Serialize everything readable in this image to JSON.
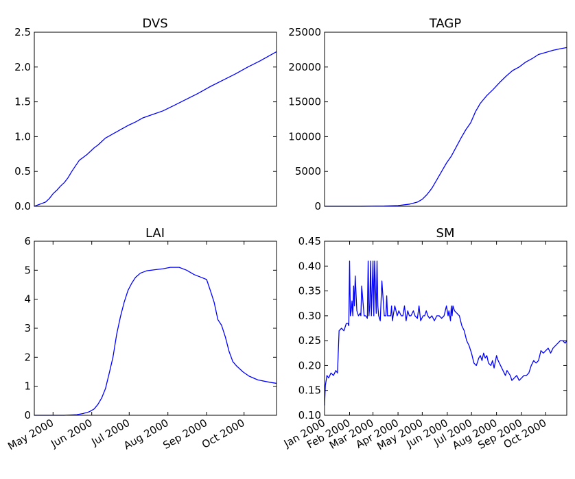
{
  "colors": {
    "line": "#0000ff",
    "axes": "#000000",
    "background": "#ffffff"
  },
  "chart_data": [
    {
      "type": "line",
      "title": "DVS",
      "xlabel": "",
      "ylabel": "",
      "xlim": [
        "2000-04-16",
        "2000-10-27"
      ],
      "ylim": [
        0,
        2.5
      ],
      "yticks": [
        "0.0",
        "0.5",
        "1.0",
        "1.5",
        "2.0",
        "2.5"
      ],
      "xticks": [],
      "grid": false,
      "series": [
        {
          "x": [
            "2000-04-16",
            "2000-04-22",
            "2000-04-25",
            "2000-04-28",
            "2000-05-01",
            "2000-05-04",
            "2000-05-07",
            "2000-05-10",
            "2000-05-13",
            "2000-05-16",
            "2000-05-19",
            "2000-05-22",
            "2000-05-25",
            "2000-05-28",
            "2000-05-31",
            "2000-06-03",
            "2000-06-06",
            "2000-06-09",
            "2000-06-12",
            "2000-06-15",
            "2000-06-18",
            "2000-06-21",
            "2000-06-24",
            "2000-06-27",
            "2000-06-30",
            "2000-07-06",
            "2000-07-12",
            "2000-07-20",
            "2000-07-28",
            "2000-08-05",
            "2000-08-15",
            "2000-08-25",
            "2000-09-04",
            "2000-09-14",
            "2000-09-24",
            "2000-10-04",
            "2000-10-14",
            "2000-10-27"
          ],
          "y": [
            0.0,
            0.04,
            0.06,
            0.11,
            0.18,
            0.23,
            0.29,
            0.34,
            0.41,
            0.5,
            0.58,
            0.66,
            0.7,
            0.74,
            0.79,
            0.84,
            0.88,
            0.93,
            0.98,
            1.01,
            1.04,
            1.07,
            1.1,
            1.13,
            1.16,
            1.21,
            1.27,
            1.32,
            1.37,
            1.44,
            1.53,
            1.62,
            1.72,
            1.81,
            1.9,
            2.0,
            2.09,
            2.22
          ]
        }
      ]
    },
    {
      "type": "line",
      "title": "TAGP",
      "xlabel": "",
      "ylabel": "",
      "xlim": [
        "2000-01-01",
        "2000-10-27"
      ],
      "ylim": [
        0,
        25000
      ],
      "yticks": [
        "0",
        "5000",
        "10000",
        "15000",
        "20000",
        "25000"
      ],
      "xticks": [],
      "grid": false,
      "series": [
        {
          "x": [
            "2000-01-01",
            "2000-02-15",
            "2000-03-15",
            "2000-04-01",
            "2000-04-15",
            "2000-04-25",
            "2000-05-01",
            "2000-05-07",
            "2000-05-13",
            "2000-05-19",
            "2000-05-25",
            "2000-05-31",
            "2000-06-06",
            "2000-06-12",
            "2000-06-18",
            "2000-06-24",
            "2000-06-30",
            "2000-07-06",
            "2000-07-12",
            "2000-07-20",
            "2000-07-28",
            "2000-08-05",
            "2000-08-13",
            "2000-08-21",
            "2000-08-29",
            "2000-09-06",
            "2000-09-14",
            "2000-09-22",
            "2000-10-01",
            "2000-10-10",
            "2000-10-18",
            "2000-10-27"
          ],
          "y": [
            0,
            0,
            30,
            100,
            300,
            600,
            1000,
            1700,
            2600,
            3800,
            5000,
            6200,
            7200,
            8500,
            9800,
            11000,
            12000,
            13600,
            14800,
            15900,
            16800,
            17800,
            18700,
            19500,
            20000,
            20700,
            21200,
            21800,
            22100,
            22400,
            22600,
            22800
          ]
        }
      ]
    },
    {
      "type": "line",
      "title": "LAI",
      "xlabel": "",
      "ylabel": "",
      "xlim": [
        "2000-04-16",
        "2000-10-27"
      ],
      "ylim": [
        0,
        6
      ],
      "yticks": [
        "0",
        "1",
        "2",
        "3",
        "4",
        "5",
        "6"
      ],
      "xticks": [
        "May 2000",
        "Jun 2000",
        "Jul 2000",
        "Aug 2000",
        "Sep 2000",
        "Oct 2000"
      ],
      "xtick_dates": [
        "2000-05-01",
        "2000-06-01",
        "2000-07-01",
        "2000-08-01",
        "2000-09-01",
        "2000-10-01"
      ],
      "grid": false,
      "series": [
        {
          "x": [
            "2000-04-16",
            "2000-05-10",
            "2000-05-20",
            "2000-05-25",
            "2000-05-30",
            "2000-06-03",
            "2000-06-06",
            "2000-06-09",
            "2000-06-12",
            "2000-06-15",
            "2000-06-18",
            "2000-06-21",
            "2000-06-24",
            "2000-06-27",
            "2000-06-30",
            "2000-07-03",
            "2000-07-06",
            "2000-07-10",
            "2000-07-15",
            "2000-07-22",
            "2000-07-28",
            "2000-08-03",
            "2000-08-10",
            "2000-08-16",
            "2000-08-22",
            "2000-08-28",
            "2000-09-01",
            "2000-09-04",
            "2000-09-07",
            "2000-09-10",
            "2000-09-13",
            "2000-09-16",
            "2000-09-19",
            "2000-09-22",
            "2000-09-25",
            "2000-09-30",
            "2000-10-05",
            "2000-10-12",
            "2000-10-20",
            "2000-10-27"
          ],
          "y": [
            0,
            0,
            0.02,
            0.06,
            0.12,
            0.22,
            0.38,
            0.6,
            0.92,
            1.45,
            2.0,
            2.8,
            3.4,
            3.9,
            4.3,
            4.55,
            4.75,
            4.9,
            4.98,
            5.02,
            5.05,
            5.1,
            5.1,
            5.0,
            4.85,
            4.75,
            4.68,
            4.3,
            3.9,
            3.3,
            3.1,
            2.7,
            2.2,
            1.85,
            1.7,
            1.5,
            1.35,
            1.22,
            1.15,
            1.1
          ]
        }
      ]
    },
    {
      "type": "line",
      "title": "SM",
      "xlabel": "",
      "ylabel": "",
      "xlim": [
        "2000-01-01",
        "2000-10-27"
      ],
      "ylim": [
        0.1,
        0.45
      ],
      "yticks": [
        "0.10",
        "0.15",
        "0.20",
        "0.25",
        "0.30",
        "0.35",
        "0.40",
        "0.45"
      ],
      "xticks": [
        "Jan 2000",
        "Feb 2000",
        "Mar 2000",
        "Apr 2000",
        "May 2000",
        "Jun 2000",
        "Jul 2000",
        "Aug 2000",
        "Sep 2000",
        "Oct 2000"
      ],
      "xtick_dates": [
        "2000-01-01",
        "2000-02-01",
        "2000-03-01",
        "2000-04-01",
        "2000-05-01",
        "2000-06-01",
        "2000-07-01",
        "2000-08-01",
        "2000-09-01",
        "2000-10-01"
      ],
      "grid": false,
      "series": [
        {
          "x": [
            "2000-01-01",
            "2000-01-02",
            "2000-01-04",
            "2000-01-06",
            "2000-01-09",
            "2000-01-12",
            "2000-01-15",
            "2000-01-17",
            "2000-01-19",
            "2000-01-22",
            "2000-01-25",
            "2000-01-28",
            "2000-01-30",
            "2000-01-31",
            "2000-02-01",
            "2000-02-02",
            "2000-02-03",
            "2000-02-04",
            "2000-02-05",
            "2000-02-06",
            "2000-02-07",
            "2000-02-08",
            "2000-02-10",
            "2000-02-12",
            "2000-02-14",
            "2000-02-15",
            "2000-02-16",
            "2000-02-19",
            "2000-02-21",
            "2000-02-23",
            "2000-02-24",
            "2000-02-25",
            "2000-02-26",
            "2000-02-27",
            "2000-02-28",
            "2000-03-01",
            "2000-03-02",
            "2000-03-03",
            "2000-03-05",
            "2000-03-06",
            "2000-03-07",
            "2000-03-08",
            "2000-03-10",
            "2000-03-12",
            "2000-03-15",
            "2000-03-17",
            "2000-03-18",
            "2000-03-19",
            "2000-03-23",
            "2000-03-24",
            "2000-03-25",
            "2000-03-28",
            "2000-03-31",
            "2000-04-02",
            "2000-04-05",
            "2000-04-07",
            "2000-04-09",
            "2000-04-11",
            "2000-04-13",
            "2000-04-15",
            "2000-04-17",
            "2000-04-20",
            "2000-04-22",
            "2000-04-25",
            "2000-04-27",
            "2000-04-29",
            "2000-05-02",
            "2000-05-04",
            "2000-05-06",
            "2000-05-08",
            "2000-05-10",
            "2000-05-13",
            "2000-05-16",
            "2000-05-19",
            "2000-05-22",
            "2000-05-25",
            "2000-05-28",
            "2000-05-31",
            "2000-06-02",
            "2000-06-03",
            "2000-06-05",
            "2000-06-06",
            "2000-06-07",
            "2000-06-08",
            "2000-06-10",
            "2000-06-13",
            "2000-06-16",
            "2000-06-19",
            "2000-06-22",
            "2000-06-25",
            "2000-06-28",
            "2000-07-01",
            "2000-07-04",
            "2000-07-07",
            "2000-07-10",
            "2000-07-12",
            "2000-07-14",
            "2000-07-16",
            "2000-07-18",
            "2000-07-20",
            "2000-07-22",
            "2000-07-25",
            "2000-07-27",
            "2000-07-29",
            "2000-08-01",
            "2000-08-03",
            "2000-08-06",
            "2000-08-09",
            "2000-08-12",
            "2000-08-14",
            "2000-08-16",
            "2000-08-18",
            "2000-08-20",
            "2000-08-23",
            "2000-08-26",
            "2000-08-29",
            "2000-09-01",
            "2000-09-04",
            "2000-09-07",
            "2000-09-10",
            "2000-09-13",
            "2000-09-16",
            "2000-09-19",
            "2000-09-22",
            "2000-09-25",
            "2000-09-28",
            "2000-10-01",
            "2000-10-04",
            "2000-10-07",
            "2000-10-10",
            "2000-10-13",
            "2000-10-16",
            "2000-10-19",
            "2000-10-22",
            "2000-10-25",
            "2000-10-27"
          ],
          "y": [
            0.12,
            0.16,
            0.18,
            0.175,
            0.185,
            0.18,
            0.19,
            0.185,
            0.27,
            0.275,
            0.27,
            0.285,
            0.285,
            0.28,
            0.41,
            0.3,
            0.31,
            0.33,
            0.3,
            0.36,
            0.32,
            0.38,
            0.31,
            0.3,
            0.305,
            0.3,
            0.36,
            0.3,
            0.3,
            0.295,
            0.41,
            0.3,
            0.32,
            0.41,
            0.3,
            0.41,
            0.3,
            0.41,
            0.305,
            0.41,
            0.32,
            0.3,
            0.29,
            0.37,
            0.3,
            0.3,
            0.34,
            0.3,
            0.3,
            0.32,
            0.29,
            0.32,
            0.3,
            0.31,
            0.3,
            0.3,
            0.32,
            0.29,
            0.31,
            0.3,
            0.3,
            0.31,
            0.3,
            0.295,
            0.32,
            0.29,
            0.3,
            0.3,
            0.31,
            0.3,
            0.295,
            0.3,
            0.29,
            0.3,
            0.3,
            0.295,
            0.3,
            0.32,
            0.3,
            0.31,
            0.29,
            0.32,
            0.3,
            0.32,
            0.31,
            0.305,
            0.3,
            0.28,
            0.27,
            0.25,
            0.24,
            0.225,
            0.205,
            0.2,
            0.215,
            0.22,
            0.21,
            0.225,
            0.215,
            0.22,
            0.205,
            0.2,
            0.21,
            0.195,
            0.22,
            0.21,
            0.2,
            0.19,
            0.18,
            0.19,
            0.185,
            0.18,
            0.17,
            0.175,
            0.18,
            0.17,
            0.175,
            0.18,
            0.18,
            0.185,
            0.2,
            0.21,
            0.205,
            0.21,
            0.23,
            0.225,
            0.23,
            0.235,
            0.225,
            0.235,
            0.24,
            0.245,
            0.25,
            0.25,
            0.245,
            0.25
          ]
        }
      ]
    }
  ]
}
